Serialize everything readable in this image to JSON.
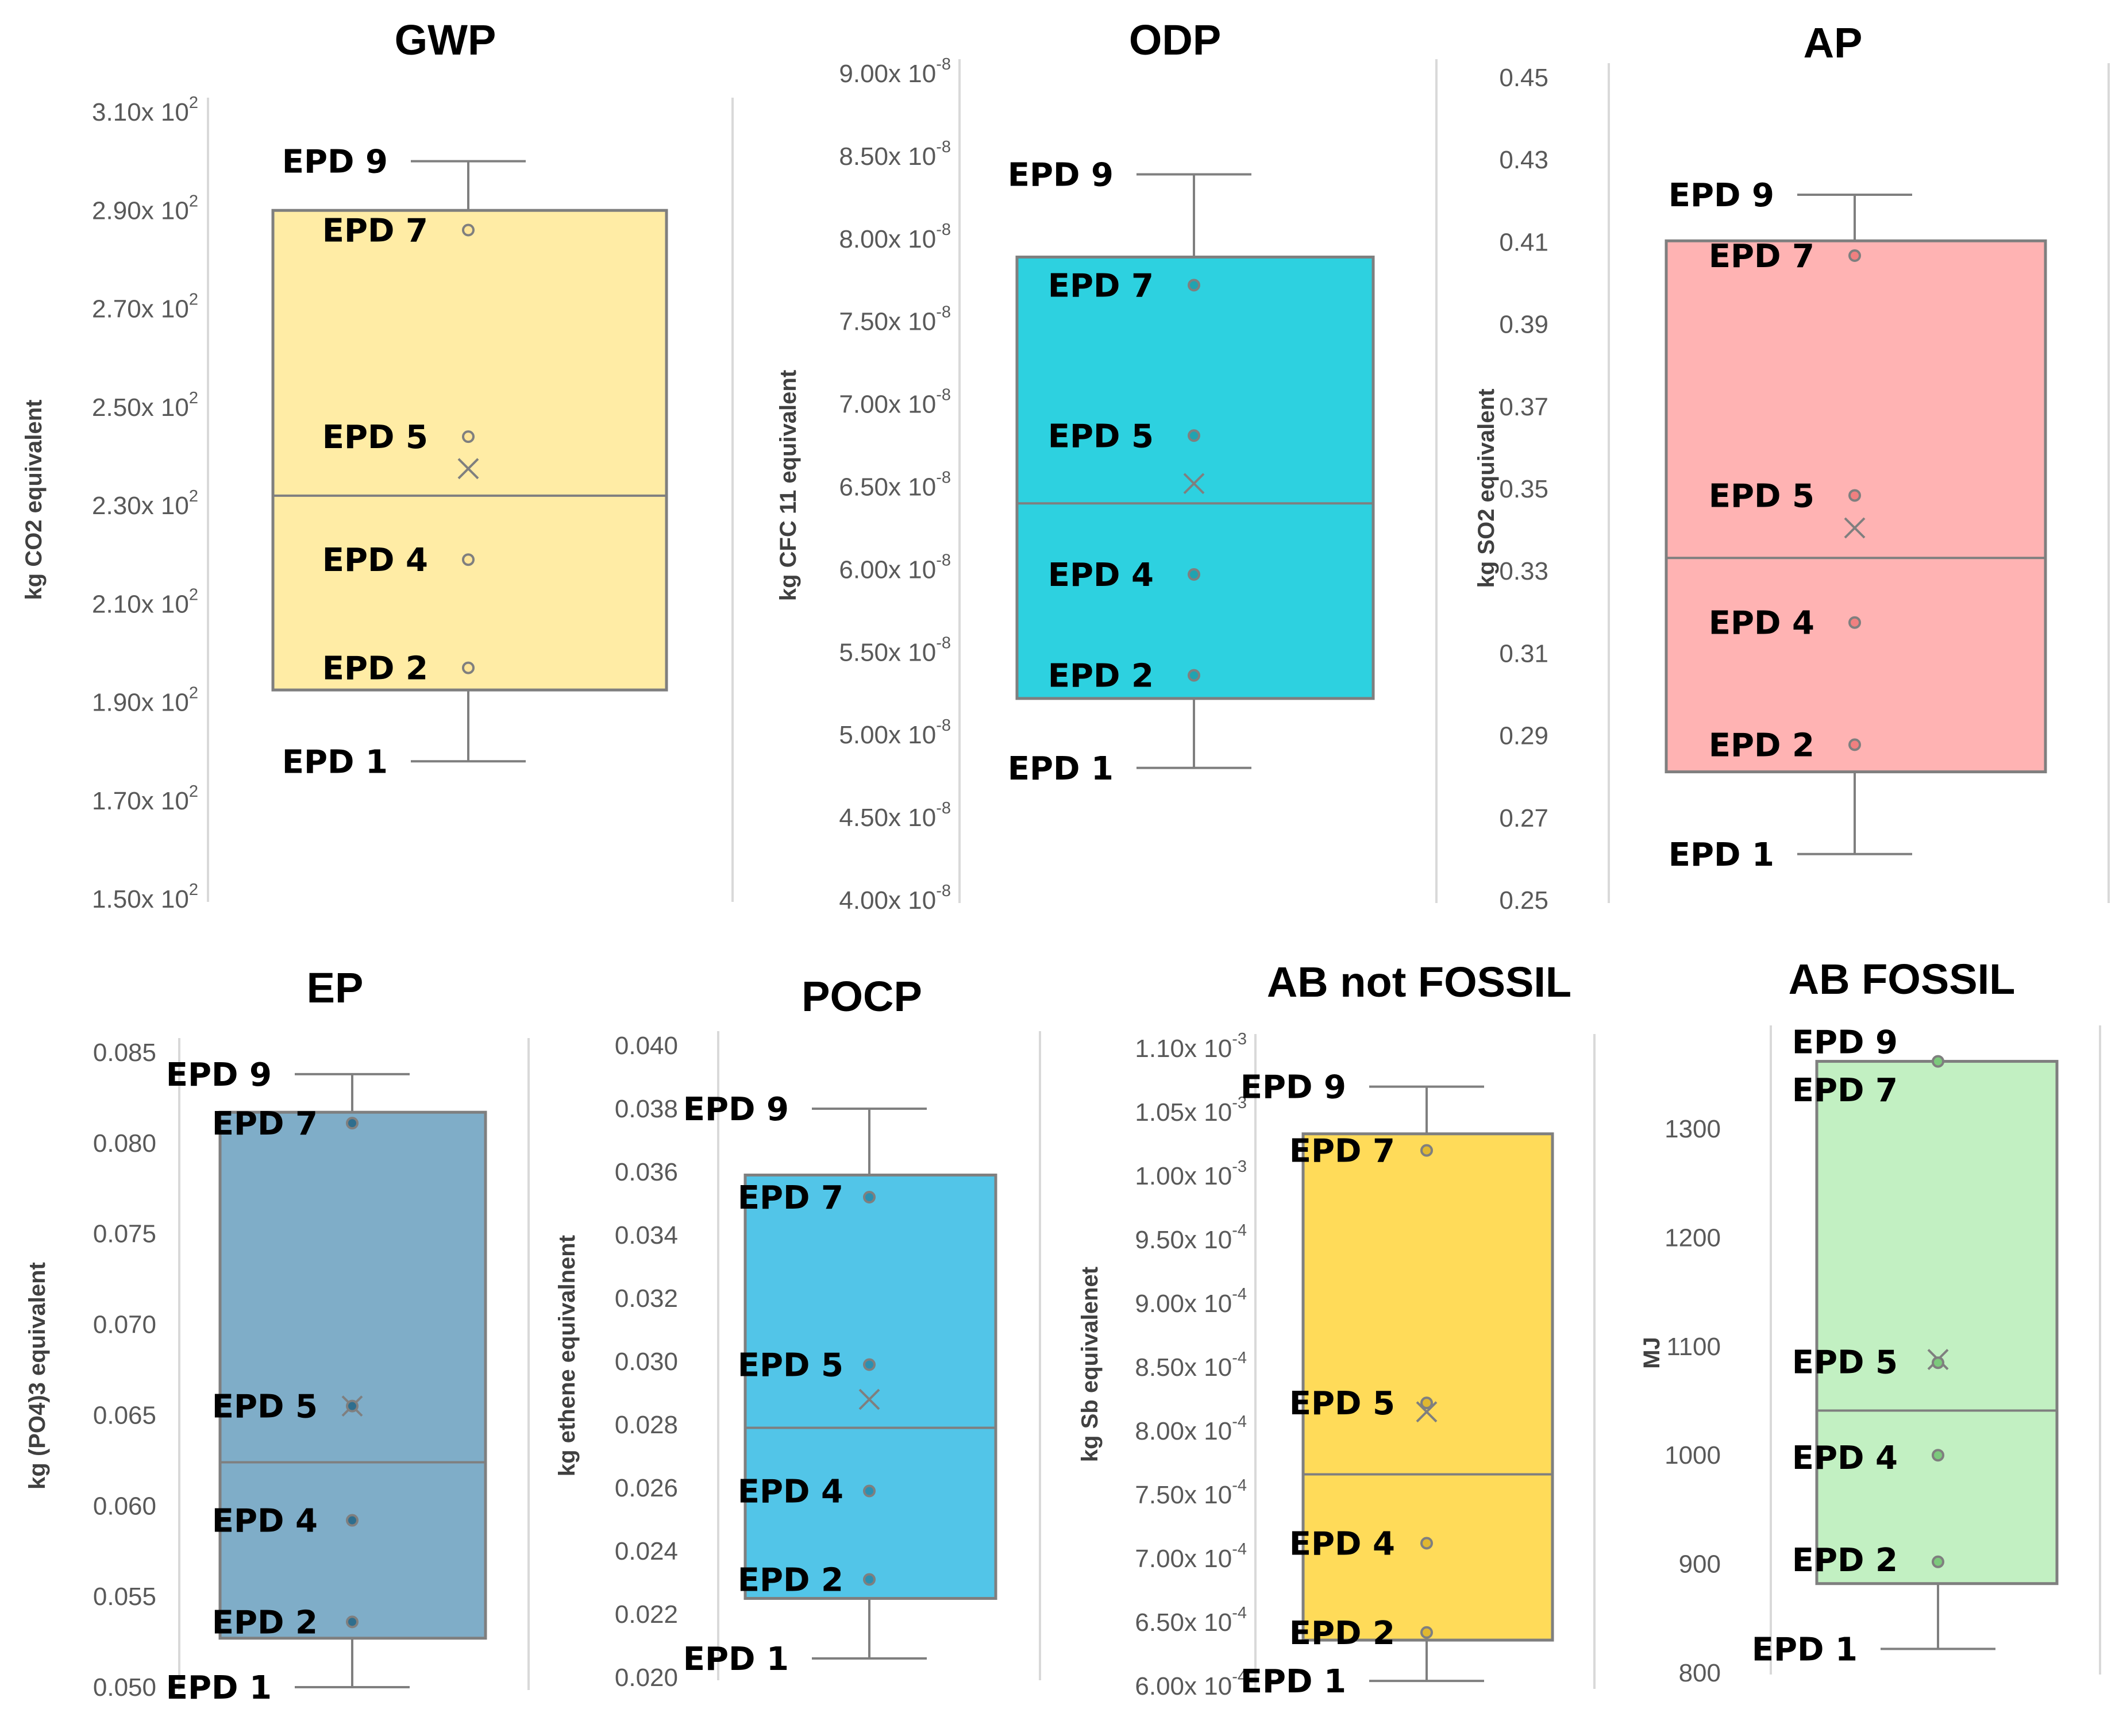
{
  "colors": {
    "axis": "#d9d9d9",
    "box_outline": "#7f7f7f",
    "tick_text": "#595959",
    "axis_label_text": "#404040",
    "title_text": "#000000"
  },
  "chart_data": [
    {
      "id": "gwp",
      "type": "box",
      "title": "GWP",
      "ylabel": "kg CO2 equivalent",
      "color": "#ffeca5",
      "point_color": "#ffe699",
      "ylim": [
        150,
        310
      ],
      "ticks": [
        {
          "v": 150,
          "m": "1.50",
          "x10": "x 10",
          "e": "2"
        },
        {
          "v": 170,
          "m": "1.70",
          "x10": "x 10",
          "e": "2"
        },
        {
          "v": 190,
          "m": "1.90",
          "x10": "x 10",
          "e": "2"
        },
        {
          "v": 210,
          "m": "2.10",
          "x10": "x 10",
          "e": "2"
        },
        {
          "v": 230,
          "m": "2.30",
          "x10": "x 10",
          "e": "2"
        },
        {
          "v": 250,
          "m": "2.50",
          "x10": "x 10",
          "e": "2"
        },
        {
          "v": 270,
          "m": "2.70",
          "x10": "x 10",
          "e": "2"
        },
        {
          "v": 290,
          "m": "2.90",
          "x10": "x 10",
          "e": "2"
        },
        {
          "v": 310,
          "m": "3.10",
          "x10": "x 10",
          "e": "2"
        }
      ],
      "whisker_low": 178,
      "q1": 192.5,
      "median": 232,
      "q3": 290,
      "whisker_high": 300,
      "mean": 237.5,
      "points": [
        {
          "name": "EPD 7",
          "value": 286
        },
        {
          "name": "EPD 5",
          "value": 244
        },
        {
          "name": "EPD 4",
          "value": 219
        },
        {
          "name": "EPD 2",
          "value": 197
        }
      ],
      "whisker_labels": {
        "top": "EPD 9",
        "bottom": "EPD 1"
      }
    },
    {
      "id": "odp",
      "type": "box",
      "title": "ODP",
      "ylabel": "kg CFC   11 equivalent",
      "color": "#2dd1e0",
      "point_color": "#20a3b0",
      "ylim": [
        4e-08,
        9e-08
      ],
      "ticks": [
        {
          "v": 4e-08,
          "m": "4.00",
          "x10": "x 10",
          "e": "-8"
        },
        {
          "v": 4.5e-08,
          "m": "4.50",
          "x10": "x 10",
          "e": "-8"
        },
        {
          "v": 5e-08,
          "m": "5.00",
          "x10": "x 10",
          "e": "-8"
        },
        {
          "v": 5.5e-08,
          "m": "5.50",
          "x10": "x 10",
          "e": "-8"
        },
        {
          "v": 6e-08,
          "m": "6.00",
          "x10": "x 10",
          "e": "-8"
        },
        {
          "v": 6.5e-08,
          "m": "6.50",
          "x10": "x 10",
          "e": "-8"
        },
        {
          "v": 7e-08,
          "m": "7.00",
          "x10": "x 10",
          "e": "-8"
        },
        {
          "v": 7.5e-08,
          "m": "7.50",
          "x10": "x 10",
          "e": "-8"
        },
        {
          "v": 8e-08,
          "m": "8.00",
          "x10": "x 10",
          "e": "-8"
        },
        {
          "v": 8.5e-08,
          "m": "8.50",
          "x10": "x 10",
          "e": "-8"
        },
        {
          "v": 9e-08,
          "m": "9.00",
          "x10": "x 10",
          "e": "-8"
        }
      ],
      "whisker_low": 4.8e-08,
      "q1": 5.22e-08,
      "median": 6.4e-08,
      "q3": 7.89e-08,
      "whisker_high": 8.39e-08,
      "mean": 6.52e-08,
      "points": [
        {
          "name": "EPD 7",
          "value": 7.72e-08
        },
        {
          "name": "EPD 5",
          "value": 6.81e-08
        },
        {
          "name": "EPD 4",
          "value": 5.97e-08
        },
        {
          "name": "EPD 2",
          "value": 5.36e-08
        }
      ],
      "whisker_labels": {
        "top": "EPD 9",
        "bottom": "EPD 1"
      }
    },
    {
      "id": "ap",
      "type": "box",
      "title": "AP",
      "ylabel": "kg SO2 equivalent",
      "color": "#ffb3b3",
      "point_color": "#f08080",
      "ylim": [
        0.25,
        0.45
      ],
      "ticks": [
        {
          "v": 0.25,
          "m": "0.25"
        },
        {
          "v": 0.27,
          "m": "0.27"
        },
        {
          "v": 0.29,
          "m": "0.29"
        },
        {
          "v": 0.31,
          "m": "0.31"
        },
        {
          "v": 0.33,
          "m": "0.33"
        },
        {
          "v": 0.35,
          "m": "0.35"
        },
        {
          "v": 0.37,
          "m": "0.37"
        },
        {
          "v": 0.39,
          "m": "0.39"
        },
        {
          "v": 0.41,
          "m": "0.41"
        },
        {
          "v": 0.43,
          "m": "0.43"
        },
        {
          "v": 0.45,
          "m": "0.45"
        }
      ],
      "whisker_low": 0.2612,
      "q1": 0.2812,
      "median": 0.3332,
      "q3": 0.4103,
      "whisker_high": 0.4215,
      "mean": 0.3405,
      "points": [
        {
          "name": "EPD 7",
          "value": 0.4067
        },
        {
          "name": "EPD 5",
          "value": 0.3484
        },
        {
          "name": "EPD 4",
          "value": 0.3175
        },
        {
          "name": "EPD 2",
          "value": 0.2878
        }
      ],
      "whisker_labels": {
        "top": "EPD 9",
        "bottom": "EPD 1"
      }
    },
    {
      "id": "ep",
      "type": "box",
      "title": "EP",
      "ylabel": "kg (PO4)3 equivalent",
      "color": "#7fadc8",
      "point_color": "#2e6e8e",
      "ylim": [
        0.05,
        0.085
      ],
      "ticks": [
        {
          "v": 0.05,
          "m": "0.050"
        },
        {
          "v": 0.055,
          "m": "0.055"
        },
        {
          "v": 0.06,
          "m": "0.060"
        },
        {
          "v": 0.065,
          "m": "0.065"
        },
        {
          "v": 0.07,
          "m": "0.070"
        },
        {
          "v": 0.075,
          "m": "0.075"
        },
        {
          "v": 0.08,
          "m": "0.080"
        },
        {
          "v": 0.085,
          "m": "0.085"
        }
      ],
      "whisker_low": 0.05,
      "q1": 0.0527,
      "median": 0.0624,
      "q3": 0.0817,
      "whisker_high": 0.0838,
      "mean": 0.0655,
      "points": [
        {
          "name": "EPD 7",
          "value": 0.0811
        },
        {
          "name": "EPD 5",
          "value": 0.0655
        },
        {
          "name": "EPD 4",
          "value": 0.0592
        },
        {
          "name": "EPD 2",
          "value": 0.0536
        }
      ],
      "whisker_labels": {
        "top": "EPD 9",
        "bottom": "EPD 1"
      }
    },
    {
      "id": "pocp",
      "type": "box",
      "title": "POCP",
      "ylabel": "kg ethene equivalnent",
      "color": "#52c5e8",
      "point_color": "#2b8fb0",
      "ylim": [
        0.02,
        0.04
      ],
      "ticks": [
        {
          "v": 0.02,
          "m": "0.020"
        },
        {
          "v": 0.022,
          "m": "0.022"
        },
        {
          "v": 0.024,
          "m": "0.024"
        },
        {
          "v": 0.026,
          "m": "0.026"
        },
        {
          "v": 0.028,
          "m": "0.028"
        },
        {
          "v": 0.03,
          "m": "0.030"
        },
        {
          "v": 0.032,
          "m": "0.032"
        },
        {
          "v": 0.034,
          "m": "0.034"
        },
        {
          "v": 0.036,
          "m": "0.036"
        },
        {
          "v": 0.038,
          "m": "0.038"
        },
        {
          "v": 0.04,
          "m": "0.040"
        }
      ],
      "whisker_low": 0.0206,
      "q1": 0.0225,
      "median": 0.0279,
      "q3": 0.0359,
      "whisker_high": 0.038,
      "mean": 0.0288,
      "points": [
        {
          "name": "EPD 7",
          "value": 0.0352
        },
        {
          "name": "EPD 5",
          "value": 0.0299
        },
        {
          "name": "EPD 4",
          "value": 0.0259
        },
        {
          "name": "EPD 2",
          "value": 0.0231
        }
      ],
      "whisker_labels": {
        "top": "EPD 9",
        "bottom": "EPD 1"
      }
    },
    {
      "id": "ab_not_fossil",
      "type": "box",
      "title": "AB not FOSSIL",
      "ylabel": "kg Sb equivalenet",
      "color": "#ffdb59",
      "point_color": "#e0b830",
      "ylim": [
        0.0006,
        0.0011
      ],
      "ticks": [
        {
          "v": 0.0006,
          "m": "6.00",
          "x10": "x 10",
          "e": "-4"
        },
        {
          "v": 0.00065,
          "m": "6.50",
          "x10": "x 10",
          "e": "-4"
        },
        {
          "v": 0.0007,
          "m": "7.00",
          "x10": "x 10",
          "e": "-4"
        },
        {
          "v": 0.00075,
          "m": "7.50",
          "x10": "x 10",
          "e": "-4"
        },
        {
          "v": 0.0008,
          "m": "8.00",
          "x10": "x 10",
          "e": "-4"
        },
        {
          "v": 0.00085,
          "m": "8.50",
          "x10": "x 10",
          "e": "-4"
        },
        {
          "v": 0.0009,
          "m": "9.00",
          "x10": "x 10",
          "e": "-4"
        },
        {
          "v": 0.00095,
          "m": "9.50",
          "x10": "x 10",
          "e": "-4"
        },
        {
          "v": 0.001,
          "m": "1.00",
          "x10": "x 10",
          "e": "-3"
        },
        {
          "v": 0.00105,
          "m": "1.05",
          "x10": "x 10",
          "e": "-3"
        },
        {
          "v": 0.0011,
          "m": "1.10",
          "x10": "x 10",
          "e": "-3"
        }
      ],
      "whisker_low": 0.000604,
      "q1": 0.000636,
      "median": 0.000766,
      "q3": 0.001033,
      "whisker_high": 0.00107,
      "mean": 0.000815,
      "points": [
        {
          "name": "EPD 7",
          "value": 0.00102
        },
        {
          "name": "EPD 5",
          "value": 0.000822
        },
        {
          "name": "EPD 4",
          "value": 0.000712
        },
        {
          "name": "EPD 2",
          "value": 0.000642
        }
      ],
      "whisker_labels": {
        "top": "EPD 9",
        "bottom": "EPD 1"
      }
    },
    {
      "id": "ab_fossil",
      "type": "box",
      "title": "AB FOSSIL",
      "ylabel": "MJ",
      "color": "#c2f0c2",
      "point_color": "#7cc97c",
      "ylim": [
        800,
        1380
      ],
      "ticks": [
        {
          "v": 800,
          "m": "800"
        },
        {
          "v": 900,
          "m": "900"
        },
        {
          "v": 1000,
          "m": "1000"
        },
        {
          "v": 1100,
          "m": "1100"
        },
        {
          "v": 1200,
          "m": "1200"
        },
        {
          "v": 1300,
          "m": "1300"
        }
      ],
      "whisker_low": 822,
      "q1": 882,
      "median": 1041,
      "q3": 1362,
      "whisker_high": 1362,
      "mean": 1088,
      "points": [
        {
          "name": "EPD 9",
          "value": 1362
        },
        {
          "name": "EPD 5",
          "value": 1085
        },
        {
          "name": "EPD 4",
          "value": 1000
        },
        {
          "name": "EPD 2",
          "value": 902
        }
      ],
      "box_labels": [
        {
          "name": "EPD 9",
          "value": 1380
        },
        {
          "name": "EPD 7",
          "value": 1336
        },
        {
          "name": "EPD 5",
          "value": 1086
        },
        {
          "name": "EPD 4",
          "value": 998
        },
        {
          "name": "EPD 2",
          "value": 904
        }
      ],
      "whisker_labels": {
        "bottom": "EPD 1"
      }
    }
  ]
}
